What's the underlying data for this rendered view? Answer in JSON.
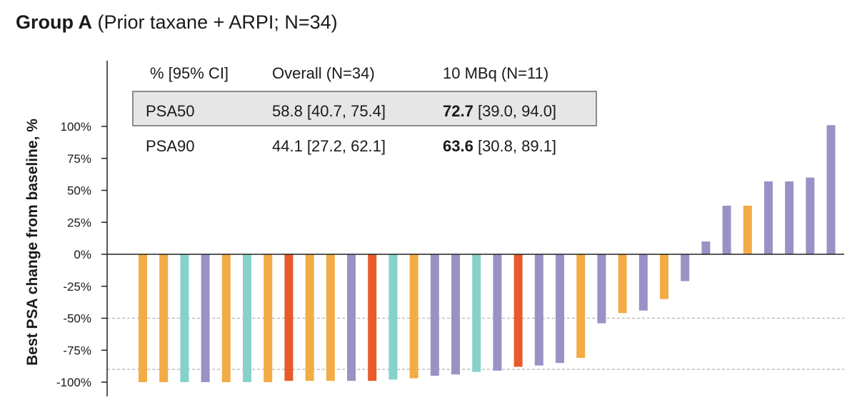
{
  "title": {
    "bold": "Group A",
    "rest": "(Prior taxane + ARPI; N=34)"
  },
  "colors": {
    "orange": "#f3ab45",
    "teal": "#86d2cb",
    "purple": "#9b91c5",
    "red": "#e85a2a",
    "axis": "#222222",
    "reference": "#b3b3b3"
  },
  "chart_data": {
    "type": "bar",
    "ylabel": "Best PSA change from baseline, %",
    "ylim": [
      -100,
      100
    ],
    "yticks": [
      "100%",
      "75%",
      "50%",
      "25%",
      "0%",
      "-25%",
      "-50%",
      "-75%",
      "-100%"
    ],
    "reference_lines": [
      -50,
      -90
    ],
    "bars": [
      {
        "value": -100,
        "color": "orange"
      },
      {
        "value": -100,
        "color": "orange"
      },
      {
        "value": -100,
        "color": "teal"
      },
      {
        "value": -100,
        "color": "purple"
      },
      {
        "value": -100,
        "color": "orange"
      },
      {
        "value": -100,
        "color": "teal"
      },
      {
        "value": -100,
        "color": "orange"
      },
      {
        "value": -99,
        "color": "red"
      },
      {
        "value": -99,
        "color": "orange"
      },
      {
        "value": -99,
        "color": "orange"
      },
      {
        "value": -99,
        "color": "purple"
      },
      {
        "value": -99,
        "color": "red"
      },
      {
        "value": -98,
        "color": "teal"
      },
      {
        "value": -97,
        "color": "orange"
      },
      {
        "value": -95,
        "color": "purple"
      },
      {
        "value": -94,
        "color": "purple"
      },
      {
        "value": -92,
        "color": "teal"
      },
      {
        "value": -91,
        "color": "purple"
      },
      {
        "value": -88,
        "color": "red"
      },
      {
        "value": -87,
        "color": "purple"
      },
      {
        "value": -85,
        "color": "purple"
      },
      {
        "value": -81,
        "color": "orange"
      },
      {
        "value": -54,
        "color": "purple"
      },
      {
        "value": -46,
        "color": "orange"
      },
      {
        "value": -44,
        "color": "purple"
      },
      {
        "value": -35,
        "color": "orange"
      },
      {
        "value": -21,
        "color": "purple"
      },
      {
        "value": 10,
        "color": "purple"
      },
      {
        "value": 38,
        "color": "purple"
      },
      {
        "value": 38,
        "color": "orange"
      },
      {
        "value": 57,
        "color": "purple"
      },
      {
        "value": 57,
        "color": "purple"
      },
      {
        "value": 60,
        "color": "purple"
      },
      {
        "value": 101,
        "color": "purple"
      }
    ]
  },
  "table": {
    "headers": [
      "% [95% CI]",
      "Overall (N=34)",
      "10 MBq (N=11)"
    ],
    "rows": [
      {
        "label": "PSA50",
        "overall": "58.8 [40.7, 75.4]",
        "dose_value": "72.7",
        "dose_ci": "[39.0, 94.0]",
        "highlighted": true
      },
      {
        "label": "PSA90",
        "overall": "44.1 [27.2, 62.1]",
        "dose_value": "63.6",
        "dose_ci": "[30.8, 89.1]",
        "highlighted": false
      }
    ]
  }
}
